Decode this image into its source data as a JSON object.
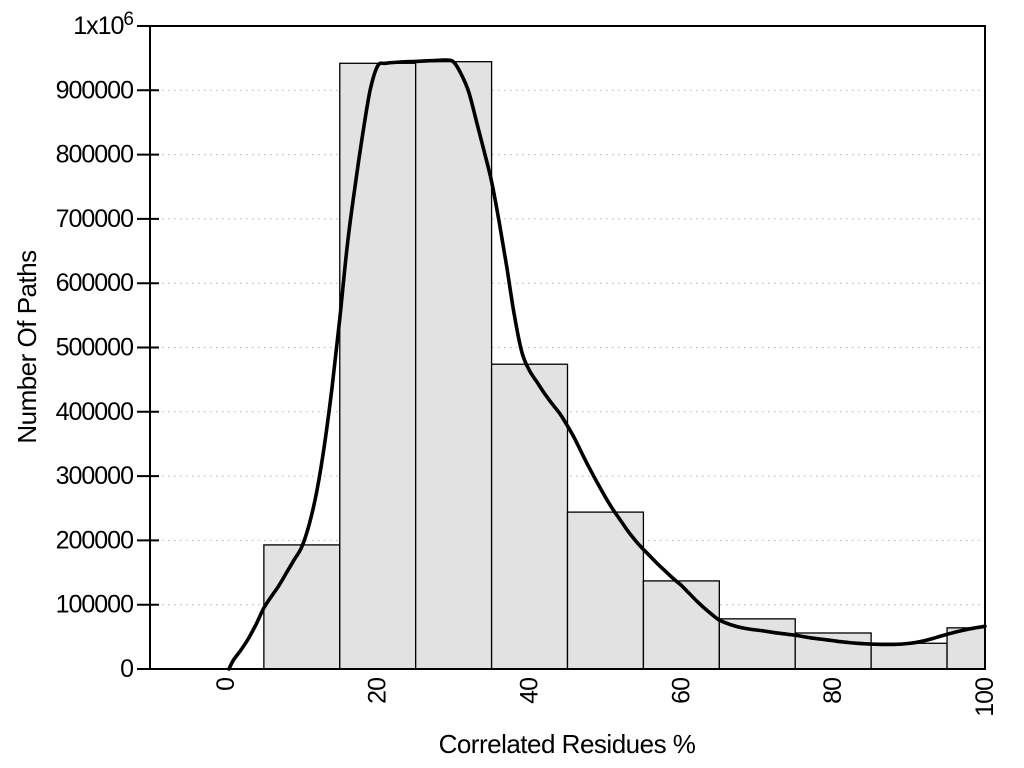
{
  "chart_data": {
    "type": "bar",
    "subtype": "histogram-with-smoothed-line",
    "title": "",
    "xlabel": "Correlated Residues %",
    "ylabel": "Number Of Paths",
    "xlim": [
      -10,
      100
    ],
    "ylim": [
      0,
      1000000
    ],
    "grid": "horizontal-dotted",
    "legend": "none",
    "x_ticks": [
      {
        "value": 0,
        "label": "0"
      },
      {
        "value": 20,
        "label": "20"
      },
      {
        "value": 40,
        "label": "40"
      },
      {
        "value": 60,
        "label": "60"
      },
      {
        "value": 80,
        "label": "80"
      },
      {
        "value": 100,
        "label": "100"
      }
    ],
    "y_ticks": [
      {
        "value": 0,
        "label": "0"
      },
      {
        "value": 100000,
        "label": "100000"
      },
      {
        "value": 200000,
        "label": "200000"
      },
      {
        "value": 300000,
        "label": "300000"
      },
      {
        "value": 400000,
        "label": "400000"
      },
      {
        "value": 500000,
        "label": "500000"
      },
      {
        "value": 600000,
        "label": "600000"
      },
      {
        "value": 700000,
        "label": "700000"
      },
      {
        "value": 800000,
        "label": "800000"
      },
      {
        "value": 900000,
        "label": "900000"
      },
      {
        "value": 1000000,
        "label": "1x10^6",
        "label_base": "1x10",
        "label_exp": "6"
      }
    ],
    "bars": [
      {
        "x0": 5,
        "x1": 15,
        "count": 193000
      },
      {
        "x0": 15,
        "x1": 25,
        "count": 942000
      },
      {
        "x0": 25,
        "x1": 35,
        "count": 944500
      },
      {
        "x0": 35,
        "x1": 45,
        "count": 474000
      },
      {
        "x0": 45,
        "x1": 55,
        "count": 244000
      },
      {
        "x0": 55,
        "x1": 65,
        "count": 137000
      },
      {
        "x0": 65,
        "x1": 75,
        "count": 78000
      },
      {
        "x0": 75,
        "x1": 85,
        "count": 56000
      },
      {
        "x0": 85,
        "x1": 95,
        "count": 40000
      },
      {
        "x0": 95,
        "x1": 100,
        "count": 64000
      }
    ],
    "line_series": {
      "name": "smoothed-frequency-curve",
      "points": [
        [
          0.4,
          0
        ],
        [
          1,
          14000
        ],
        [
          2,
          30000
        ],
        [
          3,
          48000
        ],
        [
          4,
          70000
        ],
        [
          5,
          95000
        ],
        [
          6,
          113000
        ],
        [
          7,
          130000
        ],
        [
          8,
          150000
        ],
        [
          9,
          170000
        ],
        [
          10,
          190000
        ],
        [
          11,
          226000
        ],
        [
          12,
          278000
        ],
        [
          13,
          350000
        ],
        [
          14,
          440000
        ],
        [
          15,
          545000
        ],
        [
          16,
          660000
        ],
        [
          17,
          750000
        ],
        [
          18,
          830000
        ],
        [
          19,
          900000
        ],
        [
          20,
          938000
        ],
        [
          21,
          942000
        ],
        [
          23,
          944000
        ],
        [
          25,
          945000
        ],
        [
          27,
          946000
        ],
        [
          29,
          947000
        ],
        [
          30,
          944000
        ],
        [
          31,
          925000
        ],
        [
          32,
          897000
        ],
        [
          33,
          852000
        ],
        [
          34,
          806000
        ],
        [
          35,
          758000
        ],
        [
          36,
          695000
        ],
        [
          37,
          625000
        ],
        [
          38,
          550000
        ],
        [
          39,
          492000
        ],
        [
          40,
          464000
        ],
        [
          41,
          446000
        ],
        [
          42,
          428000
        ],
        [
          43,
          412000
        ],
        [
          44,
          397000
        ],
        [
          45,
          378000
        ],
        [
          46,
          357000
        ],
        [
          47,
          333000
        ],
        [
          48,
          310000
        ],
        [
          49,
          288000
        ],
        [
          50,
          267000
        ],
        [
          51,
          248000
        ],
        [
          52,
          231000
        ],
        [
          53,
          214000
        ],
        [
          54,
          199000
        ],
        [
          55,
          186000
        ],
        [
          56,
          174000
        ],
        [
          57,
          162000
        ],
        [
          58,
          151000
        ],
        [
          59,
          140000
        ],
        [
          60,
          130000
        ],
        [
          61,
          118000
        ],
        [
          62,
          106000
        ],
        [
          63,
          95000
        ],
        [
          64,
          85000
        ],
        [
          65,
          76000
        ],
        [
          66,
          71000
        ],
        [
          67,
          67000
        ],
        [
          68,
          64000
        ],
        [
          69,
          62000
        ],
        [
          70,
          60500
        ],
        [
          71,
          59000
        ],
        [
          72,
          57000
        ],
        [
          73,
          55500
        ],
        [
          74,
          54000
        ],
        [
          75,
          52500
        ],
        [
          76,
          50500
        ],
        [
          77,
          48500
        ],
        [
          78,
          47000
        ],
        [
          79,
          45500
        ],
        [
          80,
          44000
        ],
        [
          81,
          42500
        ],
        [
          82,
          41200
        ],
        [
          83,
          40200
        ],
        [
          84,
          39400
        ],
        [
          85,
          38800
        ],
        [
          86,
          38400
        ],
        [
          87,
          38200
        ],
        [
          88,
          38300
        ],
        [
          89,
          38800
        ],
        [
          90,
          39800
        ],
        [
          91,
          41500
        ],
        [
          92,
          44000
        ],
        [
          93,
          47000
        ],
        [
          94,
          50500
        ],
        [
          95,
          54000
        ],
        [
          96,
          57000
        ],
        [
          97,
          59800
        ],
        [
          98,
          62300
        ],
        [
          99,
          64500
        ],
        [
          100,
          66500
        ]
      ]
    },
    "colors": {
      "background": "#ffffff",
      "bar_fill": "#e2e2e2",
      "bar_border": "#000000",
      "line": "#000000",
      "grid": "#b0b0b0",
      "axis": "#000000",
      "text": "#000000"
    }
  }
}
